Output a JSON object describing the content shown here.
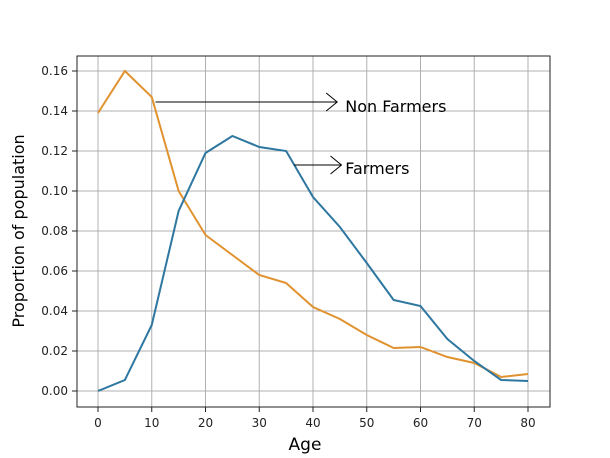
{
  "chart_data": {
    "type": "line",
    "xlabel": "Age",
    "ylabel": "Proportion of population",
    "xlim": [
      -4,
      82
    ],
    "ylim": [
      -0.008,
      0.168
    ],
    "xticks": [
      0,
      10,
      20,
      30,
      40,
      50,
      60,
      70,
      80
    ],
    "yticks": [
      "0.00",
      "0.02",
      "0.04",
      "0.06",
      "0.08",
      "0.10",
      "0.12",
      "0.14",
      "0.16"
    ],
    "grid": true,
    "x": [
      0,
      5,
      10,
      15,
      20,
      25,
      30,
      35,
      40,
      45,
      50,
      55,
      60,
      65,
      70,
      75,
      80
    ],
    "series": [
      {
        "name": "Non Farmers",
        "color": "#e0922f",
        "values": [
          0.139,
          0.16,
          0.147,
          0.1,
          0.078,
          0.068,
          0.058,
          0.054,
          0.042,
          0.036,
          0.028,
          0.0215,
          0.022,
          0.017,
          0.014,
          0.007,
          0.0085
        ]
      },
      {
        "name": "Farmers",
        "color": "#2e77a0",
        "values": [
          0.0,
          0.0055,
          0.033,
          0.09,
          0.119,
          0.1275,
          0.122,
          0.12,
          0.097,
          0.082,
          0.064,
          0.0455,
          0.0425,
          0.026,
          0.015,
          0.0055,
          0.005
        ]
      }
    ],
    "annotations": [
      {
        "text": "Non Farmers",
        "from": [
          10.7,
          0.1445
        ],
        "to": [
          44.5,
          0.1445
        ],
        "text_at": [
          46,
          0.1425
        ]
      },
      {
        "text": "Farmers",
        "from": [
          36.5,
          0.113
        ],
        "to": [
          45.3,
          0.113
        ],
        "text_at": [
          46,
          0.1115
        ]
      }
    ]
  }
}
